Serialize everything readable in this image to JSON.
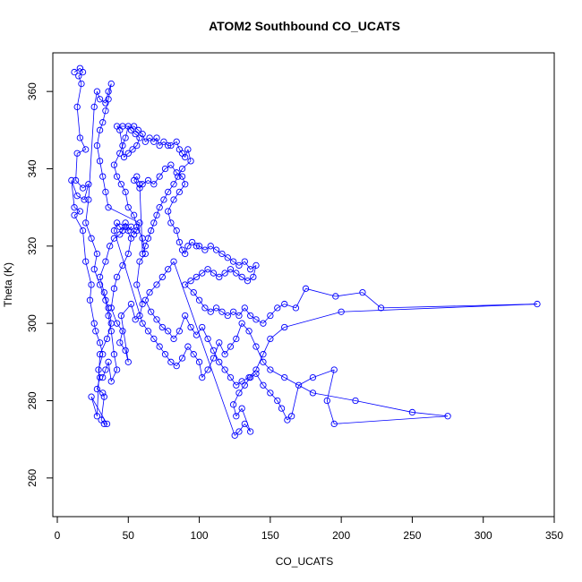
{
  "chart_data": {
    "type": "scatter",
    "title": "ATOM2 Southbound CO_UCATS",
    "xlabel": "CO_UCATS",
    "ylabel": "Theta (K)",
    "xlim": [
      0,
      350
    ],
    "ylim": [
      250,
      370
    ],
    "xticks": [
      0,
      50,
      100,
      150,
      200,
      250,
      300,
      350
    ],
    "yticks": [
      260,
      280,
      300,
      320,
      340,
      360
    ],
    "grid": false,
    "legend": "none",
    "style": "points connected by lines",
    "series": [
      {
        "color": "#0000ff",
        "marker": "open-circle",
        "points": [
          [
            12,
            365
          ],
          [
            16,
            366
          ],
          [
            18,
            365
          ],
          [
            15,
            364
          ],
          [
            17,
            362
          ],
          [
            14,
            356
          ],
          [
            16,
            348
          ],
          [
            20,
            345
          ],
          [
            14,
            344
          ],
          [
            13,
            337
          ],
          [
            18,
            335
          ],
          [
            22,
            336
          ],
          [
            19,
            332
          ],
          [
            14,
            333
          ],
          [
            10,
            337
          ],
          [
            12,
            330
          ],
          [
            16,
            329
          ],
          [
            12,
            328
          ],
          [
            18,
            324
          ],
          [
            20,
            316
          ],
          [
            24,
            310
          ],
          [
            23,
            306
          ],
          [
            26,
            300
          ],
          [
            27,
            298
          ],
          [
            30,
            295
          ],
          [
            32,
            292
          ],
          [
            29,
            288
          ],
          [
            30,
            286
          ],
          [
            28,
            283
          ],
          [
            32,
            282
          ],
          [
            33,
            281
          ],
          [
            31,
            275
          ],
          [
            33,
            274
          ],
          [
            35,
            274
          ],
          [
            24,
            281
          ],
          [
            28,
            276
          ],
          [
            30,
            292
          ],
          [
            35,
            296
          ],
          [
            38,
            300
          ],
          [
            36,
            304
          ],
          [
            33,
            308
          ],
          [
            30,
            312
          ],
          [
            34,
            316
          ],
          [
            37,
            320
          ],
          [
            40,
            322
          ],
          [
            44,
            323
          ],
          [
            48,
            325
          ],
          [
            52,
            322
          ],
          [
            50,
            318
          ],
          [
            46,
            315
          ],
          [
            42,
            312
          ],
          [
            40,
            309
          ],
          [
            38,
            304
          ],
          [
            42,
            300
          ],
          [
            46,
            298
          ],
          [
            44,
            295
          ],
          [
            48,
            293
          ],
          [
            50,
            290
          ],
          [
            45,
            302
          ],
          [
            52,
            305
          ],
          [
            55,
            301
          ],
          [
            58,
            302
          ],
          [
            60,
            305
          ],
          [
            56,
            310
          ],
          [
            58,
            316
          ],
          [
            62,
            318
          ],
          [
            60,
            322
          ],
          [
            56,
            325
          ],
          [
            54,
            328
          ],
          [
            50,
            330
          ],
          [
            48,
            334
          ],
          [
            45,
            336
          ],
          [
            42,
            338
          ],
          [
            40,
            341
          ],
          [
            44,
            344
          ],
          [
            46,
            346
          ],
          [
            48,
            348
          ],
          [
            50,
            351
          ],
          [
            52,
            350
          ],
          [
            55,
            349
          ],
          [
            58,
            348
          ],
          [
            56,
            346
          ],
          [
            53,
            345
          ],
          [
            50,
            344
          ],
          [
            47,
            343
          ],
          [
            44,
            350
          ],
          [
            42,
            351
          ],
          [
            46,
            351
          ],
          [
            54,
            351
          ],
          [
            57,
            350
          ],
          [
            60,
            349
          ],
          [
            62,
            347
          ],
          [
            65,
            348
          ],
          [
            68,
            347
          ],
          [
            70,
            348
          ],
          [
            72,
            346
          ],
          [
            75,
            347
          ],
          [
            78,
            346
          ],
          [
            80,
            346
          ],
          [
            84,
            347
          ],
          [
            86,
            345
          ],
          [
            88,
            344
          ],
          [
            90,
            343
          ],
          [
            92,
            345
          ],
          [
            94,
            342
          ],
          [
            88,
            340
          ],
          [
            85,
            338
          ],
          [
            82,
            336
          ],
          [
            78,
            334
          ],
          [
            75,
            332
          ],
          [
            72,
            330
          ],
          [
            70,
            328
          ],
          [
            68,
            326
          ],
          [
            66,
            324
          ],
          [
            64,
            322
          ],
          [
            62,
            320
          ],
          [
            60,
            318
          ],
          [
            58,
            336
          ],
          [
            56,
            338
          ],
          [
            54,
            337
          ],
          [
            58,
            335
          ],
          [
            60,
            336
          ],
          [
            64,
            337
          ],
          [
            68,
            336
          ],
          [
            72,
            338
          ],
          [
            76,
            340
          ],
          [
            80,
            341
          ],
          [
            84,
            339
          ],
          [
            88,
            338
          ],
          [
            90,
            336
          ],
          [
            86,
            334
          ],
          [
            82,
            332
          ],
          [
            78,
            329
          ],
          [
            80,
            326
          ],
          [
            84,
            324
          ],
          [
            86,
            321
          ],
          [
            88,
            319
          ],
          [
            90,
            318
          ],
          [
            92,
            320
          ],
          [
            95,
            321
          ],
          [
            98,
            320
          ],
          [
            100,
            320
          ],
          [
            104,
            319
          ],
          [
            108,
            320
          ],
          [
            112,
            319
          ],
          [
            116,
            318
          ],
          [
            120,
            317
          ],
          [
            124,
            316
          ],
          [
            128,
            315
          ],
          [
            132,
            316
          ],
          [
            136,
            314
          ],
          [
            140,
            315
          ],
          [
            138,
            312
          ],
          [
            134,
            311
          ],
          [
            130,
            312
          ],
          [
            126,
            313
          ],
          [
            122,
            314
          ],
          [
            118,
            313
          ],
          [
            114,
            312
          ],
          [
            110,
            313
          ],
          [
            106,
            314
          ],
          [
            102,
            313
          ],
          [
            98,
            312
          ],
          [
            94,
            311
          ],
          [
            90,
            310
          ],
          [
            96,
            308
          ],
          [
            100,
            306
          ],
          [
            104,
            304
          ],
          [
            108,
            303
          ],
          [
            112,
            304
          ],
          [
            116,
            303
          ],
          [
            120,
            302
          ],
          [
            124,
            303
          ],
          [
            128,
            302
          ],
          [
            132,
            304
          ],
          [
            136,
            302
          ],
          [
            140,
            301
          ],
          [
            145,
            300
          ],
          [
            150,
            302
          ],
          [
            155,
            304
          ],
          [
            160,
            305
          ],
          [
            168,
            304
          ],
          [
            175,
            309
          ],
          [
            196,
            307
          ],
          [
            215,
            308
          ],
          [
            228,
            304
          ],
          [
            338,
            305
          ],
          [
            200,
            303
          ],
          [
            160,
            299
          ],
          [
            150,
            296
          ],
          [
            145,
            292
          ],
          [
            140,
            288
          ],
          [
            135,
            286
          ],
          [
            130,
            285
          ],
          [
            126,
            284
          ],
          [
            122,
            286
          ],
          [
            118,
            288
          ],
          [
            114,
            290
          ],
          [
            110,
            293
          ],
          [
            106,
            296
          ],
          [
            102,
            299
          ],
          [
            98,
            297
          ],
          [
            94,
            299
          ],
          [
            90,
            302
          ],
          [
            86,
            298
          ],
          [
            82,
            296
          ],
          [
            78,
            298
          ],
          [
            74,
            299
          ],
          [
            70,
            301
          ],
          [
            66,
            303
          ],
          [
            62,
            306
          ],
          [
            65,
            308
          ],
          [
            70,
            310
          ],
          [
            74,
            312
          ],
          [
            78,
            314
          ],
          [
            82,
            316
          ],
          [
            125,
            271
          ],
          [
            128,
            272
          ],
          [
            132,
            274
          ],
          [
            136,
            272
          ],
          [
            130,
            278
          ],
          [
            126,
            276
          ],
          [
            124,
            279
          ],
          [
            128,
            282
          ],
          [
            132,
            284
          ],
          [
            136,
            286
          ],
          [
            140,
            287
          ],
          [
            145,
            284
          ],
          [
            150,
            282
          ],
          [
            155,
            280
          ],
          [
            158,
            278
          ],
          [
            162,
            275
          ],
          [
            165,
            276
          ],
          [
            170,
            284
          ],
          [
            180,
            286
          ],
          [
            195,
            288
          ],
          [
            190,
            280
          ],
          [
            195,
            274
          ],
          [
            275,
            276
          ],
          [
            250,
            277
          ],
          [
            210,
            280
          ],
          [
            180,
            282
          ],
          [
            160,
            286
          ],
          [
            150,
            288
          ],
          [
            145,
            290
          ],
          [
            140,
            294
          ],
          [
            135,
            298
          ],
          [
            130,
            300
          ],
          [
            126,
            296
          ],
          [
            122,
            294
          ],
          [
            118,
            292
          ],
          [
            114,
            295
          ],
          [
            110,
            291
          ],
          [
            106,
            288
          ],
          [
            102,
            286
          ],
          [
            100,
            290
          ],
          [
            96,
            292
          ],
          [
            92,
            294
          ],
          [
            88,
            291
          ],
          [
            84,
            289
          ],
          [
            80,
            290
          ],
          [
            76,
            292
          ],
          [
            72,
            294
          ],
          [
            68,
            296
          ],
          [
            64,
            298
          ],
          [
            60,
            300
          ],
          [
            40,
            324
          ],
          [
            42,
            326
          ],
          [
            44,
            325
          ],
          [
            46,
            324
          ],
          [
            48,
            326
          ],
          [
            50,
            324
          ],
          [
            52,
            325
          ],
          [
            54,
            323
          ],
          [
            56,
            324
          ],
          [
            58,
            326
          ],
          [
            36,
            330
          ],
          [
            34,
            334
          ],
          [
            32,
            338
          ],
          [
            30,
            342
          ],
          [
            28,
            346
          ],
          [
            30,
            350
          ],
          [
            32,
            352
          ],
          [
            34,
            355
          ],
          [
            36,
            358
          ],
          [
            38,
            362
          ],
          [
            36,
            360
          ],
          [
            34,
            357
          ],
          [
            30,
            358
          ],
          [
            28,
            360
          ],
          [
            26,
            356
          ],
          [
            22,
            332
          ],
          [
            20,
            326
          ],
          [
            24,
            322
          ],
          [
            28,
            318
          ],
          [
            26,
            314
          ],
          [
            30,
            310
          ],
          [
            34,
            306
          ],
          [
            36,
            302
          ],
          [
            38,
            298
          ],
          [
            40,
            292
          ],
          [
            42,
            288
          ],
          [
            38,
            285
          ],
          [
            36,
            290
          ],
          [
            34,
            288
          ],
          [
            32,
            286
          ]
        ]
      }
    ]
  }
}
